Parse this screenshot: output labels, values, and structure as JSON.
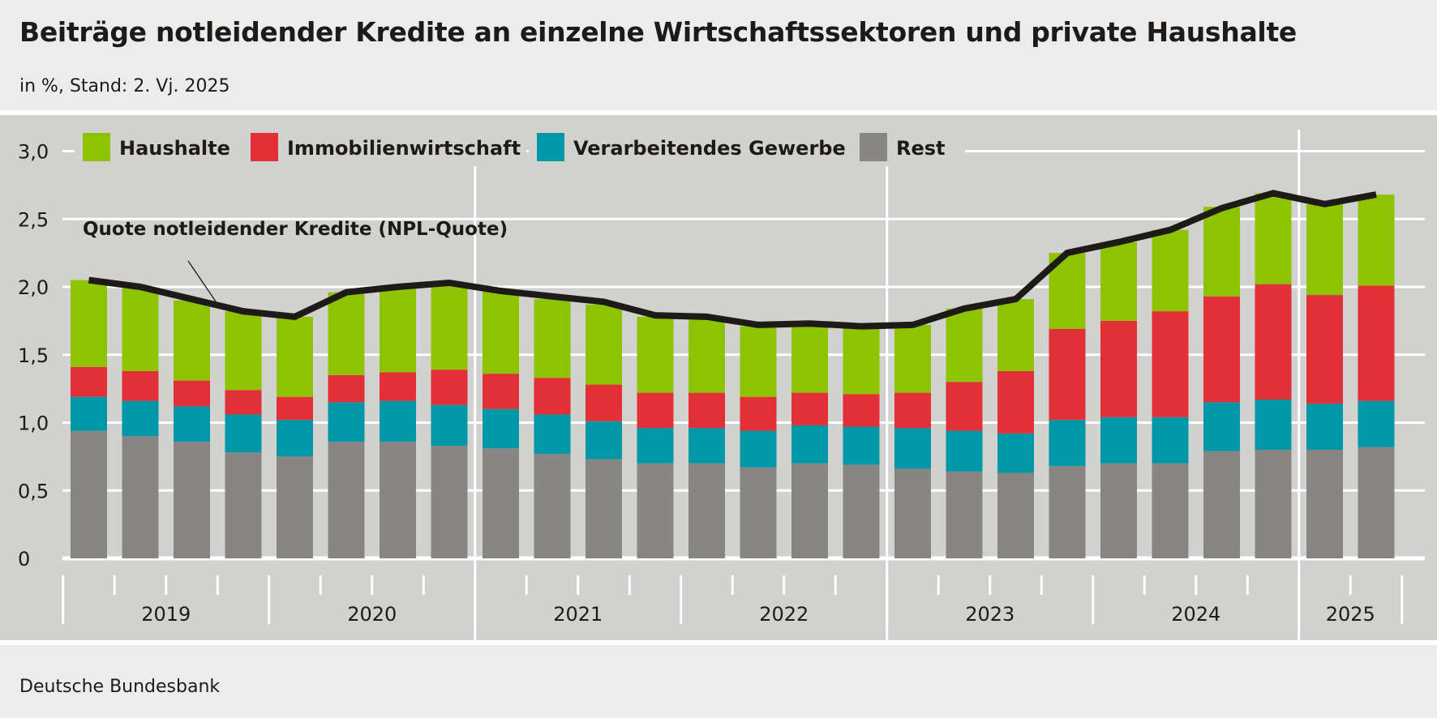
{
  "header": {
    "title": "Beiträge notleidender Kredite an einzelne Wirtschaftssektoren und private Haushalte",
    "subtitle": "in %, Stand: 2. Vj. 2025"
  },
  "footer": {
    "source": "Deutsche Bundesbank"
  },
  "chart_data": {
    "type": "bar",
    "stacked": true,
    "title": "Beiträge notleidender Kredite an einzelne Wirtschaftssektoren und private Haushalte",
    "subtitle": "in %, Stand: 2. Vj. 2025",
    "ylim": [
      0,
      3.0
    ],
    "yticks": [
      "0",
      "0,5",
      "1,0",
      "1,5",
      "2,0",
      "2,5",
      "3,0"
    ],
    "ytick_values": [
      0,
      0.5,
      1.0,
      1.5,
      2.0,
      2.5,
      3.0
    ],
    "grid": true,
    "legend_placement": "top",
    "year_labels": [
      "2019",
      "2020",
      "2021",
      "2022",
      "2023",
      "2024",
      "2025"
    ],
    "quarters_per_year": [
      4,
      4,
      4,
      4,
      4,
      4,
      2
    ],
    "categories": [
      "2019 Q1",
      "2019 Q2",
      "2019 Q3",
      "2019 Q4",
      "2020 Q1",
      "2020 Q2",
      "2020 Q3",
      "2020 Q4",
      "2021 Q1",
      "2021 Q2",
      "2021 Q3",
      "2021 Q4",
      "2022 Q1",
      "2022 Q2",
      "2022 Q3",
      "2022 Q4",
      "2023 Q1",
      "2023 Q2",
      "2023 Q3",
      "2023 Q4",
      "2024 Q1",
      "2024 Q2",
      "2024 Q3",
      "2024 Q4",
      "2025 Q1",
      "2025 Q2"
    ],
    "series": [
      {
        "name": "Rest",
        "color": "#878685",
        "values": [
          0.94,
          0.9,
          0.86,
          0.78,
          0.75,
          0.86,
          0.86,
          0.83,
          0.81,
          0.77,
          0.73,
          0.7,
          0.7,
          0.67,
          0.7,
          0.69,
          0.66,
          0.64,
          0.63,
          0.68,
          0.7,
          0.7,
          0.79,
          0.8,
          0.8,
          0.82
        ]
      },
      {
        "name": "Verarbeitendes Gewerbe",
        "color": "#0097a7",
        "values": [
          0.25,
          0.26,
          0.26,
          0.28,
          0.27,
          0.29,
          0.3,
          0.3,
          0.29,
          0.29,
          0.28,
          0.26,
          0.26,
          0.27,
          0.28,
          0.28,
          0.3,
          0.3,
          0.29,
          0.34,
          0.34,
          0.34,
          0.36,
          0.37,
          0.34,
          0.34
        ]
      },
      {
        "name": "Immobilienwirtschaft",
        "color": "#e32f36",
        "values": [
          0.22,
          0.22,
          0.19,
          0.18,
          0.17,
          0.2,
          0.21,
          0.26,
          0.26,
          0.27,
          0.27,
          0.26,
          0.26,
          0.25,
          0.24,
          0.24,
          0.26,
          0.36,
          0.46,
          0.67,
          0.71,
          0.78,
          0.78,
          0.85,
          0.8,
          0.85
        ]
      },
      {
        "name": "Haushalte",
        "color": "#8dc300",
        "values": [
          0.64,
          0.61,
          0.59,
          0.58,
          0.59,
          0.61,
          0.63,
          0.63,
          0.61,
          0.58,
          0.59,
          0.56,
          0.54,
          0.52,
          0.5,
          0.49,
          0.5,
          0.54,
          0.53,
          0.56,
          0.58,
          0.6,
          0.66,
          0.67,
          0.67,
          0.67
        ]
      }
    ],
    "legend_order": [
      "Haushalte",
      "Immobilienwirtschaft",
      "Verarbeitendes Gewerbe",
      "Rest"
    ],
    "line": {
      "name": "Quote notleidender Kredite (NPL-Quote)",
      "color": "#1e1a18",
      "values": [
        2.05,
        2.0,
        1.91,
        1.82,
        1.78,
        1.96,
        2.0,
        2.03,
        1.97,
        1.93,
        1.89,
        1.79,
        1.78,
        1.72,
        1.73,
        1.71,
        1.72,
        1.84,
        1.91,
        2.25,
        2.33,
        2.42,
        2.58,
        2.69,
        2.61,
        2.68
      ]
    }
  }
}
